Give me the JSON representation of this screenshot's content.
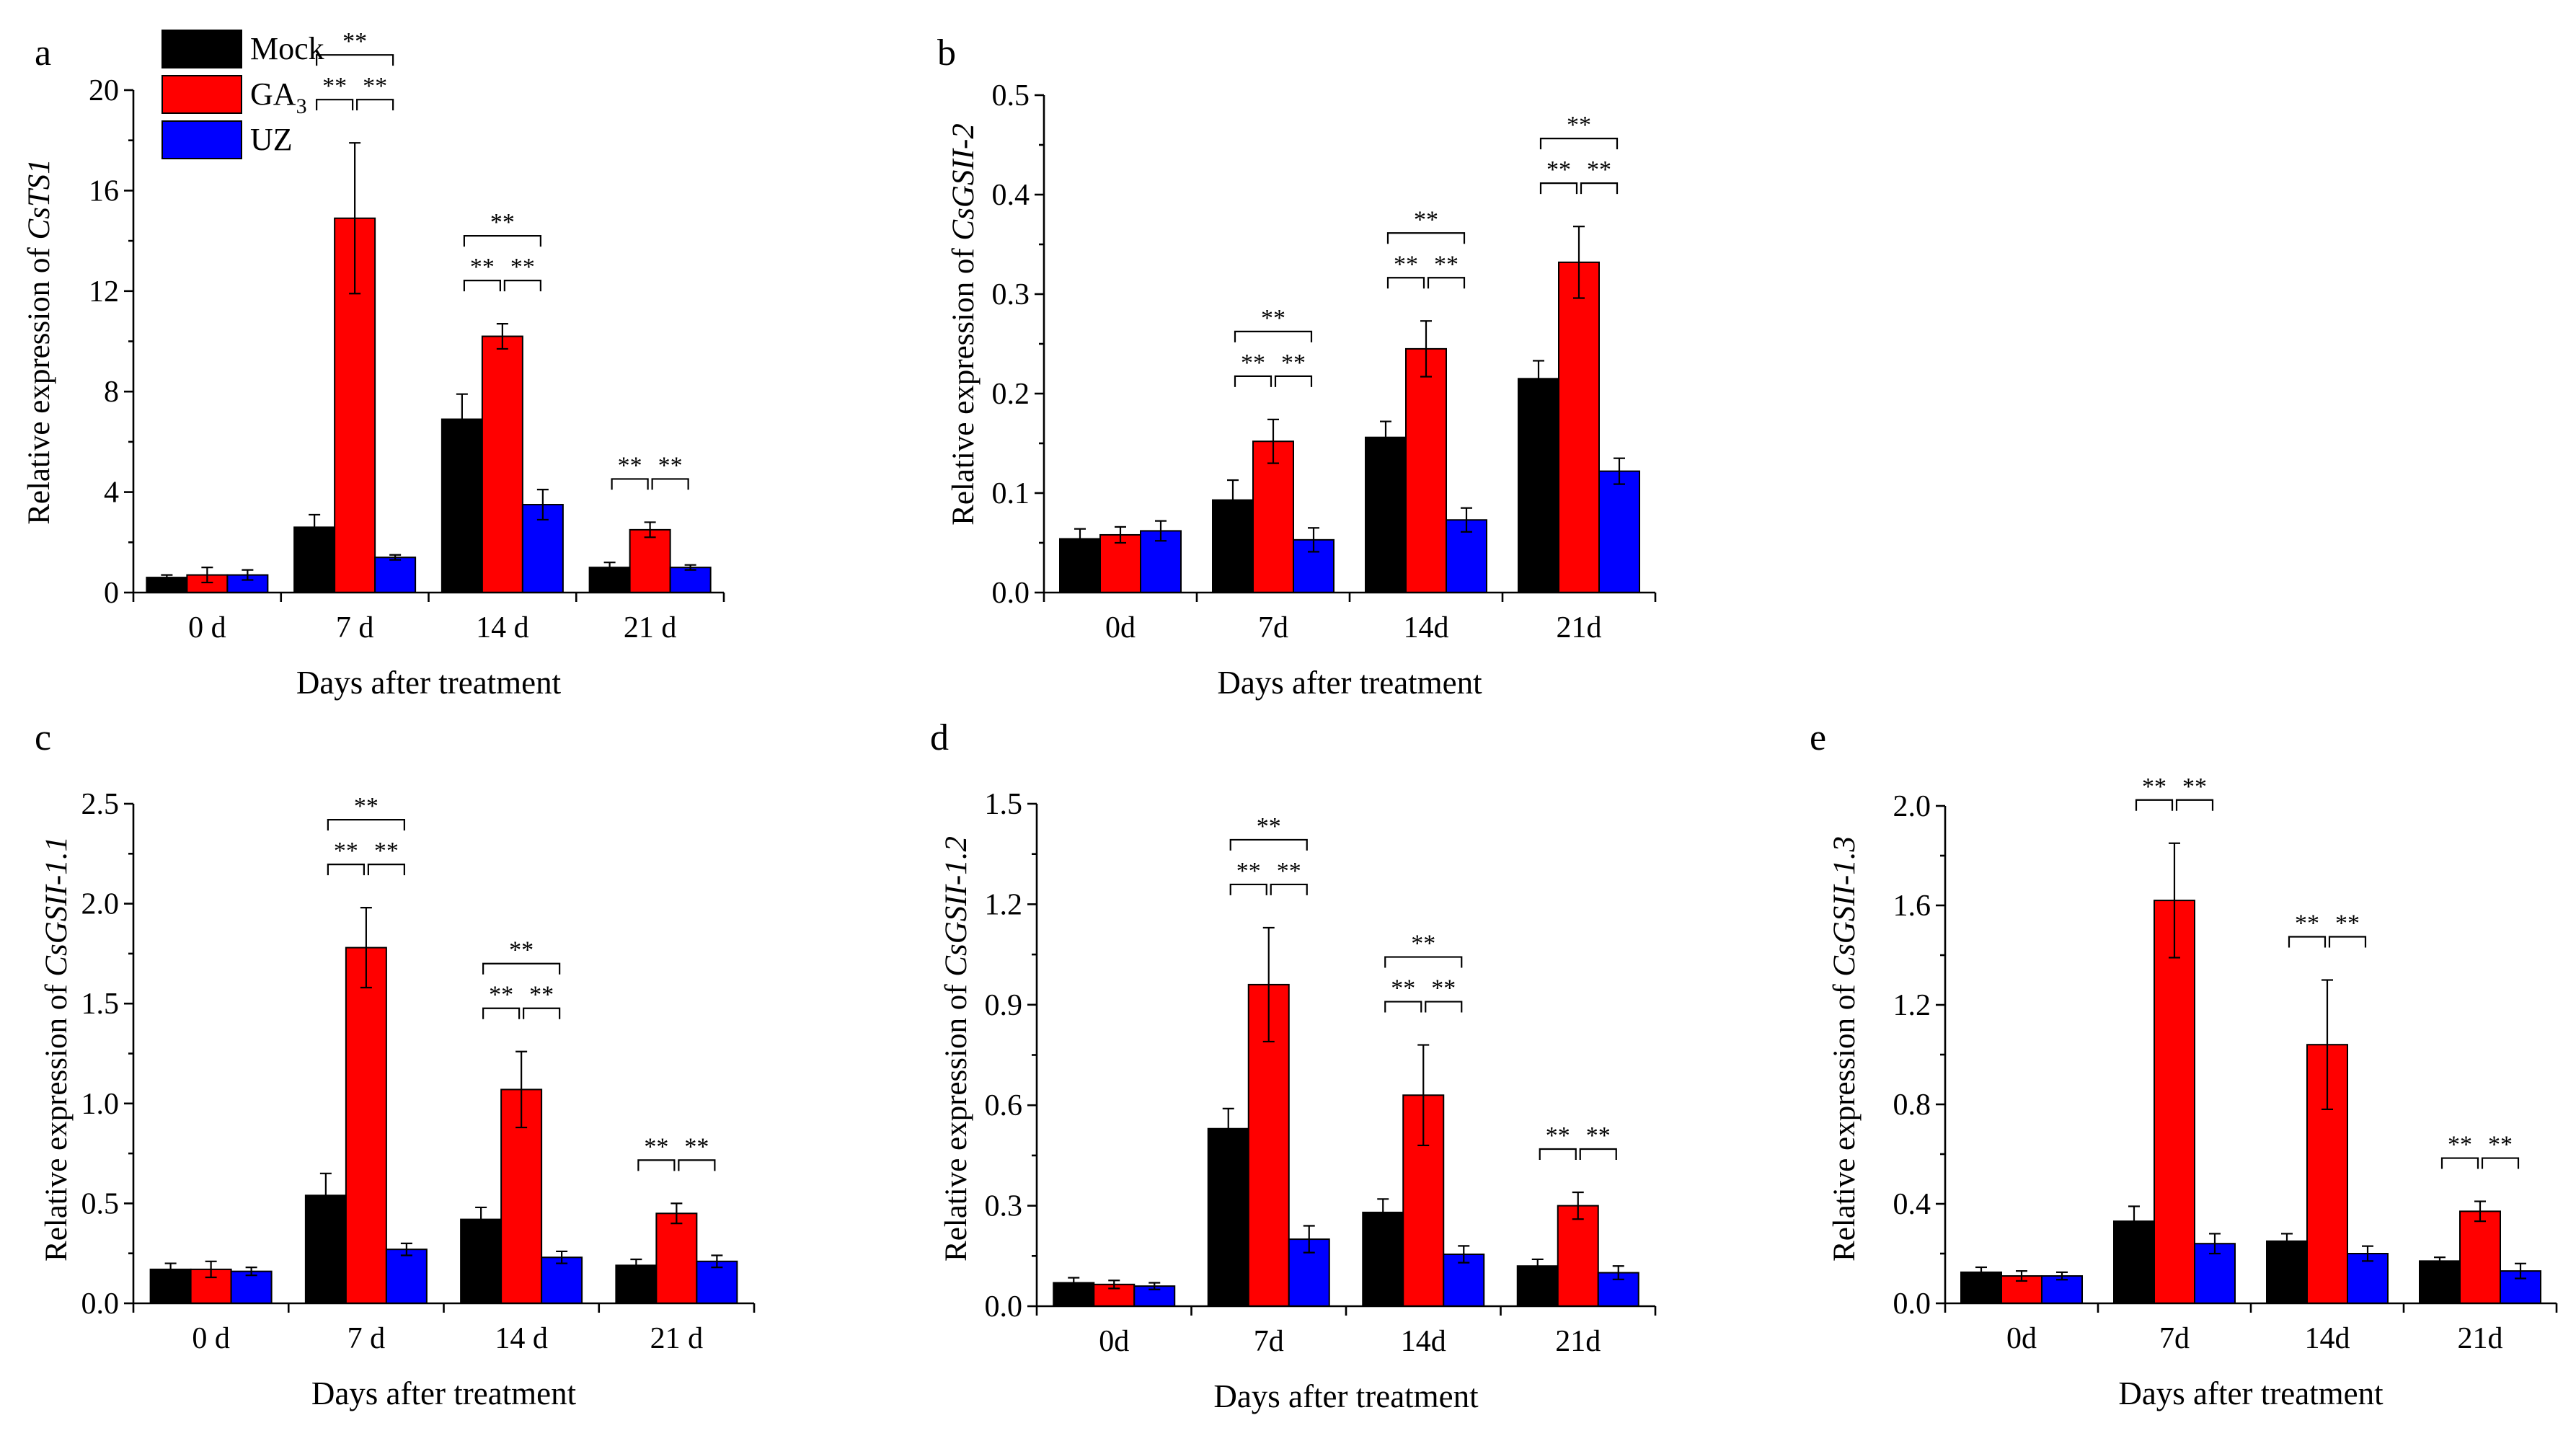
{
  "chart_data": [
    {
      "id": "a",
      "type": "bar",
      "panel_label": "a",
      "title": "",
      "ylabel_prefix": "Relative expression of ",
      "gene": "CsTS1",
      "xlabel": "Days after treatment",
      "categories": [
        "0 d",
        "7 d",
        "14 d",
        "21 d"
      ],
      "ylim": [
        0,
        20
      ],
      "yticks": [
        "0",
        "4",
        "8",
        "12",
        "16",
        "20"
      ],
      "series": [
        {
          "name": "Mock",
          "values": [
            0.6,
            2.6,
            6.9,
            1.0
          ],
          "errors": [
            0.1,
            0.5,
            1.0,
            0.2
          ]
        },
        {
          "name": "GA3",
          "values": [
            0.7,
            14.9,
            10.2,
            2.5
          ],
          "errors": [
            0.3,
            3.0,
            0.5,
            0.3
          ]
        },
        {
          "name": "UZ",
          "values": [
            0.7,
            1.4,
            3.5,
            1.0
          ],
          "errors": [
            0.2,
            0.1,
            0.6,
            0.1
          ]
        }
      ],
      "significance": [
        {
          "category": 1,
          "mock_ga3": "**",
          "ga3_uz": "**",
          "mock_uz": "**"
        },
        {
          "category": 2,
          "mock_ga3": "**",
          "ga3_uz": "**",
          "mock_uz": "**"
        },
        {
          "category": 3,
          "mock_ga3": "**",
          "ga3_uz": "**"
        }
      ]
    },
    {
      "id": "b",
      "type": "bar",
      "panel_label": "b",
      "title": "",
      "ylabel_prefix": "Relative expression of ",
      "gene": "CsGSII-2",
      "xlabel": "Days after treatment",
      "categories": [
        "0d",
        "7d",
        "14d",
        "21d"
      ],
      "ylim": [
        0,
        0.5
      ],
      "yticks": [
        "0.0",
        "0.1",
        "0.2",
        "0.3",
        "0.4",
        "0.5"
      ],
      "series": [
        {
          "name": "Mock",
          "values": [
            0.054,
            0.093,
            0.156,
            0.215
          ],
          "errors": [
            0.01,
            0.02,
            0.016,
            0.018
          ]
        },
        {
          "name": "GA3",
          "values": [
            0.058,
            0.152,
            0.245,
            0.332
          ],
          "errors": [
            0.008,
            0.022,
            0.028,
            0.036
          ]
        },
        {
          "name": "UZ",
          "values": [
            0.062,
            0.053,
            0.073,
            0.122
          ],
          "errors": [
            0.01,
            0.012,
            0.012,
            0.013
          ]
        }
      ],
      "significance": [
        {
          "category": 1,
          "mock_ga3": "**",
          "ga3_uz": "**",
          "mock_uz": "**"
        },
        {
          "category": 2,
          "mock_ga3": "**",
          "ga3_uz": "**",
          "mock_uz": "**"
        },
        {
          "category": 3,
          "mock_ga3": "**",
          "ga3_uz": "**",
          "mock_uz": "**"
        }
      ]
    },
    {
      "id": "c",
      "type": "bar",
      "panel_label": "c",
      "title": "",
      "ylabel_prefix": "Relative expression of ",
      "gene": "CsGSII-1.1",
      "xlabel": "Days after treatment",
      "categories": [
        "0 d",
        "7 d",
        "14 d",
        "21 d"
      ],
      "ylim": [
        0,
        2.5
      ],
      "yticks": [
        "0.0",
        "0.5",
        "1.0",
        "1.5",
        "2.0",
        "2.5"
      ],
      "series": [
        {
          "name": "Mock",
          "values": [
            0.17,
            0.54,
            0.42,
            0.19
          ],
          "errors": [
            0.03,
            0.11,
            0.06,
            0.03
          ]
        },
        {
          "name": "GA3",
          "values": [
            0.17,
            1.78,
            1.07,
            0.45
          ],
          "errors": [
            0.04,
            0.2,
            0.19,
            0.05
          ]
        },
        {
          "name": "UZ",
          "values": [
            0.16,
            0.27,
            0.23,
            0.21
          ],
          "errors": [
            0.02,
            0.03,
            0.03,
            0.03
          ]
        }
      ],
      "significance": [
        {
          "category": 1,
          "mock_ga3": "**",
          "ga3_uz": "**",
          "mock_uz": "**"
        },
        {
          "category": 2,
          "mock_ga3": "**",
          "ga3_uz": "**",
          "mock_uz": "**"
        },
        {
          "category": 3,
          "mock_ga3": "**",
          "ga3_uz": "**"
        }
      ]
    },
    {
      "id": "d",
      "type": "bar",
      "panel_label": "d",
      "title": "",
      "ylabel_prefix": "Relative expression of ",
      "gene": "CsGSII-1.2",
      "xlabel": "Days after treatment",
      "categories": [
        "0d",
        "7d",
        "14d",
        "21d"
      ],
      "ylim": [
        0,
        1.5
      ],
      "yticks": [
        "0.0",
        "0.3",
        "0.6",
        "0.9",
        "1.2",
        "1.5"
      ],
      "series": [
        {
          "name": "Mock",
          "values": [
            0.07,
            0.53,
            0.28,
            0.12
          ],
          "errors": [
            0.015,
            0.06,
            0.04,
            0.02
          ]
        },
        {
          "name": "GA3",
          "values": [
            0.065,
            0.96,
            0.63,
            0.3
          ],
          "errors": [
            0.012,
            0.17,
            0.15,
            0.04
          ]
        },
        {
          "name": "UZ",
          "values": [
            0.06,
            0.2,
            0.155,
            0.1
          ],
          "errors": [
            0.01,
            0.04,
            0.025,
            0.02
          ]
        }
      ],
      "significance": [
        {
          "category": 1,
          "mock_ga3": "**",
          "ga3_uz": "**",
          "mock_uz": "**"
        },
        {
          "category": 2,
          "mock_ga3": "**",
          "ga3_uz": "**",
          "mock_uz": "**"
        },
        {
          "category": 3,
          "mock_ga3": "**",
          "ga3_uz": "**"
        }
      ]
    },
    {
      "id": "e",
      "type": "bar",
      "panel_label": "e",
      "title": "",
      "ylabel_prefix": "Relative expression of ",
      "gene": "CsGSII-1.3",
      "xlabel": "Days after treatment",
      "categories": [
        "0d",
        "7d",
        "14d",
        "21d"
      ],
      "ylim": [
        0,
        2.0
      ],
      "yticks": [
        "0.0",
        "0.4",
        "0.8",
        "1.2",
        "1.6",
        "2.0"
      ],
      "series": [
        {
          "name": "Mock",
          "values": [
            0.125,
            0.33,
            0.25,
            0.17
          ],
          "errors": [
            0.02,
            0.06,
            0.03,
            0.015
          ]
        },
        {
          "name": "GA3",
          "values": [
            0.11,
            1.62,
            1.04,
            0.37
          ],
          "errors": [
            0.02,
            0.23,
            0.26,
            0.04
          ]
        },
        {
          "name": "UZ",
          "values": [
            0.11,
            0.24,
            0.2,
            0.13
          ],
          "errors": [
            0.015,
            0.04,
            0.03,
            0.03
          ]
        }
      ],
      "significance": [
        {
          "category": 1,
          "mock_ga3": "**",
          "ga3_uz": "**"
        },
        {
          "category": 2,
          "mock_ga3": "**",
          "ga3_uz": "**"
        },
        {
          "category": 3,
          "mock_ga3": "**",
          "ga3_uz": "**"
        }
      ]
    }
  ],
  "legend": {
    "location": "top-left of panel a",
    "items": [
      {
        "name": "Mock",
        "label": "Mock",
        "color": "#000000"
      },
      {
        "name": "GA3",
        "label": "GA",
        "subscript": "3",
        "color": "#ff0000"
      },
      {
        "name": "UZ",
        "label": "UZ",
        "color": "#0000ff"
      }
    ]
  },
  "colors": {
    "Mock": "#000000",
    "GA3": "#ff0000",
    "UZ": "#0000ff"
  }
}
